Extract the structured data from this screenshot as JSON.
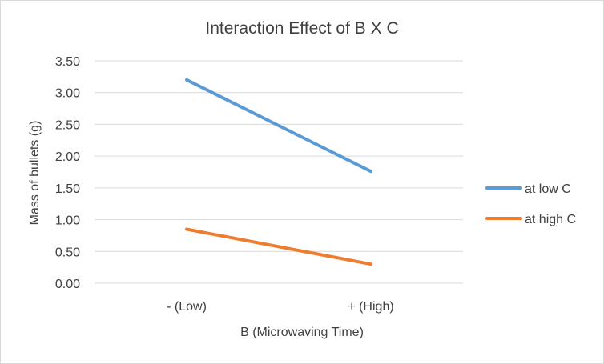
{
  "chart_data": {
    "type": "line",
    "title": "Interaction Effect of B X C",
    "xlabel": "B (Microwaving Time)",
    "ylabel": "Mass of bullets (g)",
    "categories": [
      "- (Low)",
      "+ (High)"
    ],
    "ylim": [
      0,
      3.5
    ],
    "yticks": [
      "0.00",
      "0.50",
      "1.00",
      "1.50",
      "2.00",
      "2.50",
      "3.00",
      "3.50"
    ],
    "grid": true,
    "legend_position": "right",
    "series": [
      {
        "name": "at low C",
        "values": [
          3.2,
          1.76
        ],
        "color": "#5B9BD5"
      },
      {
        "name": "at high C",
        "values": [
          0.85,
          0.3
        ],
        "color": "#ED7D31"
      }
    ]
  }
}
